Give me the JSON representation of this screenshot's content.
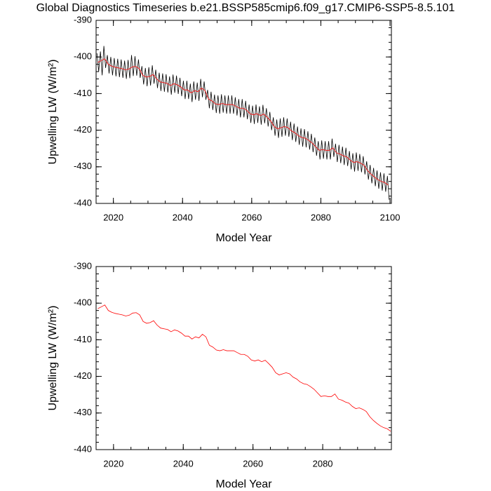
{
  "chart_data": [
    {
      "type": "line",
      "title": "Global Diagnostics Timeseries b.e21.BSSP585cmip6.f09_g17.CMIP6-SSP5-8.5.101",
      "xlabel": "Model Year",
      "ylabel": "Upwelling LW (W/m²)",
      "xlim": [
        2015,
        2100.4
      ],
      "ylim": [
        -440,
        -390
      ],
      "xticks": [
        2020,
        2040,
        2060,
        2080,
        2100
      ],
      "yticks": [
        -390,
        -400,
        -410,
        -420,
        -430,
        -440
      ],
      "series": [
        {
          "color": "#000000",
          "x": [
            2015.25,
            2015.75,
            2016.25,
            2016.75,
            2017.25,
            2017.75,
            2018.25,
            2018.75,
            2019.25,
            2019.75,
            2020.25,
            2020.75,
            2021.25,
            2021.75,
            2022.25,
            2022.75,
            2023.25,
            2023.75,
            2024.25,
            2024.75,
            2025.25,
            2025.75,
            2026.25,
            2026.75,
            2027.25,
            2027.75,
            2028.25,
            2028.75,
            2029.25,
            2029.75,
            2030.25,
            2030.75,
            2031.25,
            2031.75,
            2032.25,
            2032.75,
            2033.25,
            2033.75,
            2034.25,
            2034.75,
            2035.25,
            2035.75,
            2036.25,
            2036.75,
            2037.25,
            2037.75,
            2038.25,
            2038.75,
            2039.25,
            2039.75,
            2040.25,
            2040.75,
            2041.25,
            2041.75,
            2042.25,
            2042.75,
            2043.25,
            2043.75,
            2044.25,
            2044.75,
            2045.25,
            2045.75,
            2046.25,
            2046.75,
            2047.25,
            2047.75,
            2048.25,
            2048.75,
            2049.25,
            2049.75,
            2050.25,
            2050.75,
            2051.25,
            2051.75,
            2052.25,
            2052.75,
            2053.25,
            2053.75,
            2054.25,
            2054.75,
            2055.25,
            2055.75,
            2056.25,
            2056.75,
            2057.25,
            2057.75,
            2058.25,
            2058.75,
            2059.25,
            2059.75,
            2060.25,
            2060.75,
            2061.25,
            2061.75,
            2062.25,
            2062.75,
            2063.25,
            2063.75,
            2064.25,
            2064.75,
            2065.25,
            2065.75,
            2066.25,
            2066.75,
            2067.25,
            2067.75,
            2068.25,
            2068.75,
            2069.25,
            2069.75,
            2070.25,
            2070.75,
            2071.25,
            2071.75,
            2072.25,
            2072.75,
            2073.25,
            2073.75,
            2074.25,
            2074.75,
            2075.25,
            2075.75,
            2076.25,
            2076.75,
            2077.25,
            2077.75,
            2078.25,
            2078.75,
            2079.25,
            2079.75,
            2080.25,
            2080.75,
            2081.25,
            2081.75,
            2082.25,
            2082.75,
            2083.25,
            2083.75,
            2084.25,
            2084.75,
            2085.25,
            2085.75,
            2086.25,
            2086.75,
            2087.25,
            2087.75,
            2088.25,
            2088.75,
            2089.25,
            2089.75,
            2090.25,
            2090.75,
            2091.25,
            2091.75,
            2092.25,
            2092.75,
            2093.25,
            2093.75,
            2094.25,
            2094.75,
            2095.25,
            2095.75,
            2096.25,
            2096.75,
            2097.25,
            2097.75,
            2098.25,
            2098.75,
            2099.25,
            2099.75
          ],
          "values": [
            -399,
            -404,
            -398.5,
            -405,
            -397,
            -403,
            -399.5,
            -404.5,
            -400,
            -405,
            -400.3,
            -405.3,
            -400.5,
            -405.5,
            -400.7,
            -405.7,
            -401,
            -406,
            -400.8,
            -405.8,
            -399.5,
            -405.2,
            -399.8,
            -405.1,
            -400.7,
            -405.7,
            -402.5,
            -407.5,
            -403,
            -408,
            -402.8,
            -407.8,
            -402.3,
            -407.3,
            -403.5,
            -408.5,
            -404.3,
            -409.3,
            -404.5,
            -409.5,
            -404.7,
            -409.7,
            -405.3,
            -410.3,
            -404.8,
            -409.8,
            -405.1,
            -410.1,
            -405.7,
            -410.7,
            -406.5,
            -411.5,
            -406.5,
            -411.5,
            -407.3,
            -412.3,
            -406.7,
            -411.7,
            -407,
            -412,
            -406,
            -411,
            -406.7,
            -411.7,
            -409,
            -414,
            -409.5,
            -414.5,
            -410.3,
            -415.3,
            -410.5,
            -415.5,
            -410.2,
            -415.2,
            -410.5,
            -415.5,
            -410.5,
            -415.5,
            -410.5,
            -415.5,
            -411,
            -416,
            -411.5,
            -416.5,
            -411.5,
            -416.5,
            -412,
            -417,
            -413,
            -418,
            -413.3,
            -418.3,
            -413,
            -418,
            -413.5,
            -418.5,
            -413.1,
            -418.1,
            -414,
            -419,
            -415,
            -420,
            -416.5,
            -421.5,
            -417.1,
            -422.1,
            -416.8,
            -421.8,
            -416.5,
            -421.5,
            -416.8,
            -421.8,
            -417.7,
            -422.7,
            -418.2,
            -423.2,
            -419,
            -424,
            -419.5,
            -424.5,
            -419.7,
            -424.7,
            -420.3,
            -425.3,
            -421,
            -426,
            -422,
            -427,
            -423,
            -428,
            -422.8,
            -427.8,
            -423,
            -428,
            -423,
            -428,
            -422.3,
            -427.3,
            -423.7,
            -428.7,
            -424,
            -429,
            -424.5,
            -429.5,
            -424.8,
            -429.8,
            -425.7,
            -430.7,
            -426.3,
            -431.3,
            -426.1,
            -431.1,
            -426.5,
            -431.5,
            -427.1,
            -432.1,
            -428.5,
            -433.5,
            -429.5,
            -434.5,
            -430.3,
            -435.3,
            -431,
            -436,
            -431.5,
            -436.5,
            -431.8,
            -436.8,
            -432.5,
            -439
          ]
        },
        {
          "color": "#ff0000",
          "x": [
            2015.5,
            2016.5,
            2017.5,
            2018.5,
            2019.5,
            2020.5,
            2021.5,
            2022.5,
            2023.5,
            2024.5,
            2025.5,
            2026.5,
            2027.5,
            2028.5,
            2029.5,
            2030.5,
            2031.5,
            2032.5,
            2033.5,
            2034.5,
            2035.5,
            2036.5,
            2037.5,
            2038.5,
            2039.5,
            2040.5,
            2041.5,
            2042.5,
            2043.5,
            2044.5,
            2045.5,
            2046.5,
            2047.5,
            2048.5,
            2049.5,
            2050.5,
            2051.5,
            2052.5,
            2053.5,
            2054.5,
            2055.5,
            2056.5,
            2057.5,
            2058.5,
            2059.5,
            2060.5,
            2061.5,
            2062.5,
            2063.5,
            2064.5,
            2065.5,
            2066.5,
            2067.5,
            2068.5,
            2069.5,
            2070.5,
            2071.5,
            2072.5,
            2073.5,
            2074.5,
            2075.5,
            2076.5,
            2077.5,
            2078.5,
            2079.5,
            2080.5,
            2081.5,
            2082.5,
            2083.5,
            2084.5,
            2085.5,
            2086.5,
            2087.5,
            2088.5,
            2089.5,
            2090.5,
            2091.5,
            2092.5,
            2093.5,
            2094.5,
            2095.5,
            2096.5,
            2097.5,
            2098.5,
            2099.5
          ],
          "values": [
            -401.5,
            -401,
            -400.5,
            -402,
            -402.5,
            -402.8,
            -403,
            -403.2,
            -403.5,
            -403.3,
            -402.7,
            -402.6,
            -403.2,
            -405,
            -405.5,
            -405.3,
            -404.8,
            -406,
            -406.8,
            -407,
            -407.2,
            -407.8,
            -407.3,
            -407.6,
            -408.2,
            -409,
            -409,
            -409.8,
            -409.2,
            -409.5,
            -408.5,
            -409.2,
            -411.5,
            -412,
            -412.8,
            -413,
            -412.7,
            -413,
            -413,
            -413,
            -413.5,
            -414,
            -414,
            -414.5,
            -415.5,
            -415.8,
            -415.5,
            -416,
            -415.6,
            -416.5,
            -417.5,
            -419,
            -419.6,
            -419.3,
            -419,
            -419.3,
            -420.2,
            -420.7,
            -421.5,
            -422,
            -422.2,
            -422.8,
            -423.5,
            -424.5,
            -425.5,
            -425.3,
            -425.5,
            -425.5,
            -424.8,
            -426.2,
            -426.5,
            -427,
            -427.3,
            -428.2,
            -428.8,
            -428.6,
            -429,
            -429.6,
            -431,
            -432,
            -432.8,
            -433.5,
            -434,
            -434.3,
            -435
          ]
        }
      ]
    },
    {
      "type": "line",
      "xlabel": "Model Year",
      "ylabel": "Upwelling LW (W/m²)",
      "xlim": [
        2015,
        2099.7
      ],
      "ylim": [
        -440,
        -390
      ],
      "xticks": [
        2020,
        2040,
        2060,
        2080
      ],
      "yticks": [
        -390,
        -400,
        -410,
        -420,
        -430,
        -440
      ],
      "series": [
        {
          "color": "#ff0000",
          "x": [
            2015.5,
            2016.5,
            2017.5,
            2018.5,
            2019.5,
            2020.5,
            2021.5,
            2022.5,
            2023.5,
            2024.5,
            2025.5,
            2026.5,
            2027.5,
            2028.5,
            2029.5,
            2030.5,
            2031.5,
            2032.5,
            2033.5,
            2034.5,
            2035.5,
            2036.5,
            2037.5,
            2038.5,
            2039.5,
            2040.5,
            2041.5,
            2042.5,
            2043.5,
            2044.5,
            2045.5,
            2046.5,
            2047.5,
            2048.5,
            2049.5,
            2050.5,
            2051.5,
            2052.5,
            2053.5,
            2054.5,
            2055.5,
            2056.5,
            2057.5,
            2058.5,
            2059.5,
            2060.5,
            2061.5,
            2062.5,
            2063.5,
            2064.5,
            2065.5,
            2066.5,
            2067.5,
            2068.5,
            2069.5,
            2070.5,
            2071.5,
            2072.5,
            2073.5,
            2074.5,
            2075.5,
            2076.5,
            2077.5,
            2078.5,
            2079.5,
            2080.5,
            2081.5,
            2082.5,
            2083.5,
            2084.5,
            2085.5,
            2086.5,
            2087.5,
            2088.5,
            2089.5,
            2090.5,
            2091.5,
            2092.5,
            2093.5,
            2094.5,
            2095.5,
            2096.5,
            2097.5,
            2098.5,
            2099.5
          ],
          "values": [
            -401.5,
            -401,
            -400.5,
            -402,
            -402.5,
            -402.8,
            -403,
            -403.2,
            -403.5,
            -403.3,
            -402.7,
            -402.6,
            -403.2,
            -405,
            -405.5,
            -405.3,
            -404.8,
            -406,
            -406.8,
            -407,
            -407.2,
            -407.8,
            -407.3,
            -407.6,
            -408.2,
            -409,
            -409,
            -409.8,
            -409.2,
            -409.5,
            -408.5,
            -409.2,
            -411.5,
            -412,
            -412.8,
            -413,
            -412.7,
            -413,
            -413,
            -413,
            -413.5,
            -414,
            -414,
            -414.5,
            -415.5,
            -415.8,
            -415.5,
            -416,
            -415.6,
            -416.5,
            -417.5,
            -419,
            -419.6,
            -419.3,
            -419,
            -419.3,
            -420.2,
            -420.7,
            -421.5,
            -422,
            -422.2,
            -422.8,
            -423.5,
            -424.5,
            -425.5,
            -425.3,
            -425.5,
            -425.5,
            -424.8,
            -426.2,
            -426.5,
            -427,
            -427.3,
            -428.2,
            -428.8,
            -428.6,
            -429,
            -429.6,
            -431,
            -432,
            -432.8,
            -433.5,
            -434,
            -434.3,
            -435
          ]
        }
      ]
    }
  ]
}
